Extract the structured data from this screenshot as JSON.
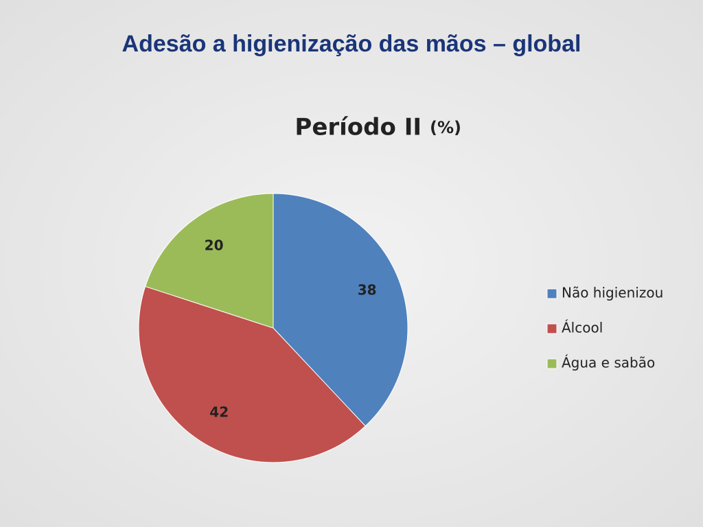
{
  "title": "Adesão a higienização das mãos – global",
  "chart_data": {
    "type": "pie",
    "title": "Período II",
    "subtitle": "(%)",
    "categories": [
      "Não higienizou",
      "Álcool",
      "Água e sabão"
    ],
    "values": [
      38,
      42,
      20
    ],
    "colors": [
      "#4f81bd",
      "#c0504d",
      "#9bbb59"
    ],
    "legend": "right"
  }
}
